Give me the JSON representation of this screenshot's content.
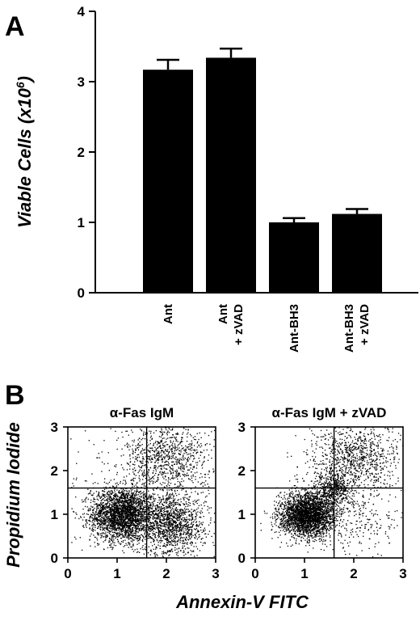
{
  "panel_a": {
    "letter": "A"
  },
  "panel_b": {
    "letter": "B"
  },
  "chart_data": [
    {
      "type": "bar",
      "panel": "A",
      "categories": [
        {
          "line1": "Ant",
          "line2": ""
        },
        {
          "line1": "Ant",
          "line2": "+ zVAD"
        },
        {
          "line1": "Ant-BH3",
          "line2": ""
        },
        {
          "line1": "Ant-BH3",
          "line2": "+ zVAD"
        }
      ],
      "values": [
        3.17,
        3.34,
        1.0,
        1.12
      ],
      "errors": [
        0.14,
        0.13,
        0.06,
        0.07
      ],
      "ylabel_main": "Viable Cells (x10",
      "ylabel_sup": "6",
      "ylabel_close": ")",
      "ylim": [
        0,
        4
      ],
      "yticks": [
        0,
        1,
        2,
        3,
        4
      ],
      "bar_color": "#000000"
    },
    {
      "type": "scatter",
      "panel": "B",
      "title": "α-Fas IgM",
      "xlim": [
        0,
        3
      ],
      "ylim": [
        0,
        3
      ],
      "xticks": [
        0,
        1,
        2,
        3
      ],
      "yticks": [
        0,
        1,
        2,
        3
      ],
      "gate_x": 1.6,
      "gate_y": 1.6,
      "clusters": [
        {
          "cx": 1.1,
          "cy": 1.0,
          "sx": 0.32,
          "sy": 0.3,
          "n": 2600
        },
        {
          "cx": 2.1,
          "cy": 0.75,
          "sx": 0.33,
          "sy": 0.34,
          "n": 1300
        },
        {
          "cx": 2.0,
          "cy": 2.3,
          "sx": 0.45,
          "sy": 0.42,
          "n": 900
        },
        {
          "cx": 1.5,
          "cy": 1.5,
          "sx": 0.8,
          "sy": 0.8,
          "n": 300
        }
      ]
    },
    {
      "type": "scatter",
      "panel": "B",
      "title": "α-Fas IgM + zVAD",
      "xlim": [
        0,
        3
      ],
      "ylim": [
        0,
        3
      ],
      "xticks": [
        0,
        1,
        2,
        3
      ],
      "yticks": [
        0,
        1,
        2,
        3
      ],
      "gate_x": 1.6,
      "gate_y": 1.6,
      "clusters": [
        {
          "cx": 1.05,
          "cy": 1.0,
          "sx": 0.28,
          "sy": 0.25,
          "n": 2800
        },
        {
          "cx": 1.55,
          "cy": 1.6,
          "sx": 0.2,
          "sy": 0.2,
          "n": 500
        },
        {
          "cx": 2.0,
          "cy": 2.3,
          "sx": 0.45,
          "sy": 0.4,
          "n": 950
        },
        {
          "cx": 2.2,
          "cy": 0.9,
          "sx": 0.5,
          "sy": 0.45,
          "n": 250
        }
      ]
    }
  ],
  "scatter_axes": {
    "ylabel": "Propidium Iodide",
    "xlabel": "Annexin-V FITC"
  }
}
